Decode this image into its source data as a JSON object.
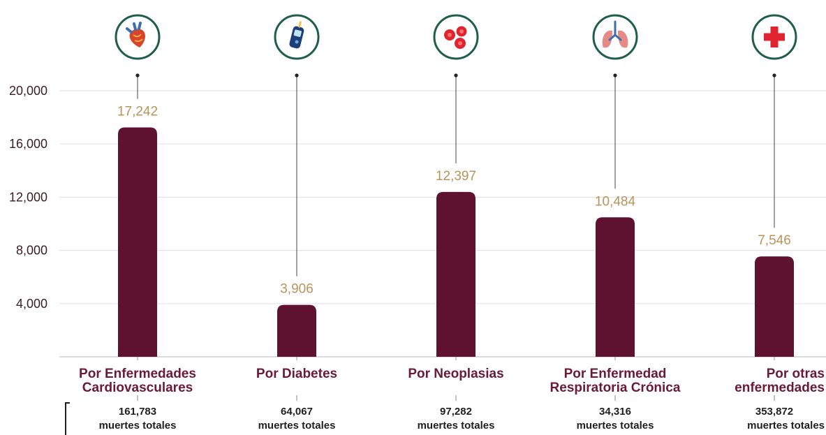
{
  "colors": {
    "bar": "#5e1230",
    "value_label": "#b8945a",
    "category_label": "#6a1a34",
    "totals": "#1f1f1f",
    "grid": "#e4e4e4",
    "icon_ring": "#1f5e48"
  },
  "chart_data": {
    "type": "bar",
    "title": "",
    "xlabel": "",
    "ylabel": "",
    "ylim": [
      0,
      20000
    ],
    "yticks": [
      4000,
      8000,
      12000,
      16000,
      20000
    ],
    "ytick_labels": [
      "4,000",
      "8,000",
      "12,000",
      "16,000",
      "20,000"
    ],
    "grid": true,
    "categories": [
      [
        "Por Enfermedades",
        "Cardiovasculares"
      ],
      [
        "Por Diabetes"
      ],
      [
        "Por Neoplasias"
      ],
      [
        "Por Enfermedad",
        "Respiratoria Crónica"
      ],
      [
        "Por otras",
        "enfermedades"
      ]
    ],
    "values": [
      17242,
      3906,
      12397,
      10484,
      7546
    ],
    "value_labels": [
      "17,242",
      "3,906",
      "12,397",
      "10,484",
      "7,546"
    ],
    "icons": [
      "heart-icon",
      "glucometer-icon",
      "cells-icon",
      "lungs-icon",
      "medical-cross-icon"
    ],
    "totals": [
      {
        "value": "161,783",
        "label": "muertes totales"
      },
      {
        "value": "64,067",
        "label": "muertes totales"
      },
      {
        "value": "97,282",
        "label": "muertes totales"
      },
      {
        "value": "34,316",
        "label": "muertes totales"
      },
      {
        "value": "353,872",
        "label": "muertes totales"
      }
    ]
  }
}
